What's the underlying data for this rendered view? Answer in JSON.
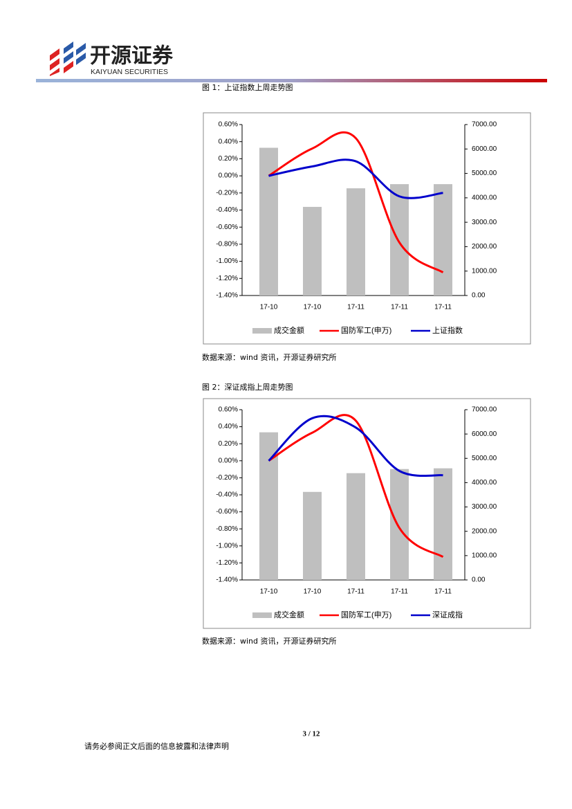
{
  "header": {
    "logo_cn": "开源证券",
    "logo_en": "KAIYUAN SECURITIES"
  },
  "chart_data": [
    {
      "type": "combo",
      "title": "图 1：上证指数上周走势图",
      "source": "数据来源：wind 资讯，开源证券研究所",
      "categories": [
        "17-10",
        "17-10",
        "17-11",
        "17-11",
        "17-11"
      ],
      "ylim": [
        -1.4,
        0.6
      ],
      "yticks": [
        {
          "value": 0.6,
          "label": "0.60%"
        },
        {
          "value": 0.4,
          "label": "0.40%"
        },
        {
          "value": 0.2,
          "label": "0.20%"
        },
        {
          "value": 0,
          "label": "0.00%"
        },
        {
          "value": -0.2,
          "label": "-0.20%"
        },
        {
          "value": -0.4,
          "label": "-0.40%"
        },
        {
          "value": -0.6,
          "label": "-0.60%"
        },
        {
          "value": -0.8,
          "label": "-0.80%"
        },
        {
          "value": -1,
          "label": "-1.00%"
        },
        {
          "value": -1.2,
          "label": "-1.20%"
        },
        {
          "value": -1.4,
          "label": "-1.40%"
        }
      ],
      "y2lim": [
        0,
        7000
      ],
      "y2ticks": [
        {
          "value": 7000,
          "label": "7000.00"
        },
        {
          "value": 6000,
          "label": "6000.00"
        },
        {
          "value": 5000,
          "label": "5000.00"
        },
        {
          "value": 4000,
          "label": "4000.00"
        },
        {
          "value": 3000,
          "label": "3000.00"
        },
        {
          "value": 2000,
          "label": "2000.00"
        },
        {
          "value": 1000,
          "label": "1000.00"
        },
        {
          "value": 0,
          "label": "0.00"
        }
      ],
      "series": [
        {
          "name": "成交金额",
          "type": "bar",
          "axis": "y2",
          "color": "#bfbfbf",
          "values": [
            6050,
            3630,
            4390,
            4560,
            4560
          ]
        },
        {
          "name": "国防军工(申万)",
          "type": "line",
          "color": "#ff0000",
          "values": [
            0,
            0.32,
            0.44,
            -0.78,
            -1.13
          ]
        },
        {
          "name": "上证指数",
          "type": "line",
          "color": "#0000cc",
          "values": [
            0,
            0.11,
            0.17,
            -0.24,
            -0.2
          ]
        }
      ]
    },
    {
      "type": "combo",
      "title": "图 2：深证成指上周走势图",
      "source": "数据来源：wind 资讯，开源证券研究所",
      "categories": [
        "17-10",
        "17-10",
        "17-11",
        "17-11",
        "17-11"
      ],
      "ylim": [
        -1.4,
        0.6
      ],
      "yticks": [
        {
          "value": 0.6,
          "label": "0.60%"
        },
        {
          "value": 0.4,
          "label": "0.40%"
        },
        {
          "value": 0.2,
          "label": "0.20%"
        },
        {
          "value": 0,
          "label": "0.00%"
        },
        {
          "value": -0.2,
          "label": "-0.20%"
        },
        {
          "value": -0.4,
          "label": "-0.40%"
        },
        {
          "value": -0.6,
          "label": "-0.60%"
        },
        {
          "value": -0.8,
          "label": "-0.80%"
        },
        {
          "value": -1,
          "label": "-1.00%"
        },
        {
          "value": -1.2,
          "label": "-1.20%"
        },
        {
          "value": -1.4,
          "label": "-1.40%"
        }
      ],
      "y2lim": [
        0,
        7000
      ],
      "y2ticks": [
        {
          "value": 7000,
          "label": "7000.00"
        },
        {
          "value": 6000,
          "label": "6000.00"
        },
        {
          "value": 5000,
          "label": "5000.00"
        },
        {
          "value": 4000,
          "label": "4000.00"
        },
        {
          "value": 3000,
          "label": "3000.00"
        },
        {
          "value": 2000,
          "label": "2000.00"
        },
        {
          "value": 1000,
          "label": "1000.00"
        },
        {
          "value": 0,
          "label": "0.00"
        }
      ],
      "series": [
        {
          "name": "成交金额",
          "type": "bar",
          "axis": "y2",
          "color": "#bfbfbf",
          "values": [
            6070,
            3620,
            4390,
            4560,
            4590
          ]
        },
        {
          "name": "国防军工(申万)",
          "type": "line",
          "color": "#ff0000",
          "values": [
            0,
            0.33,
            0.47,
            -0.79,
            -1.13
          ]
        },
        {
          "name": "深证成指",
          "type": "line",
          "color": "#0000cc",
          "values": [
            0,
            0.5,
            0.39,
            -0.12,
            -0.17
          ]
        }
      ]
    }
  ],
  "footer": {
    "page": "3 / 12",
    "disclaimer": "请务必参阅正文后面的信息披露和法律声明"
  }
}
